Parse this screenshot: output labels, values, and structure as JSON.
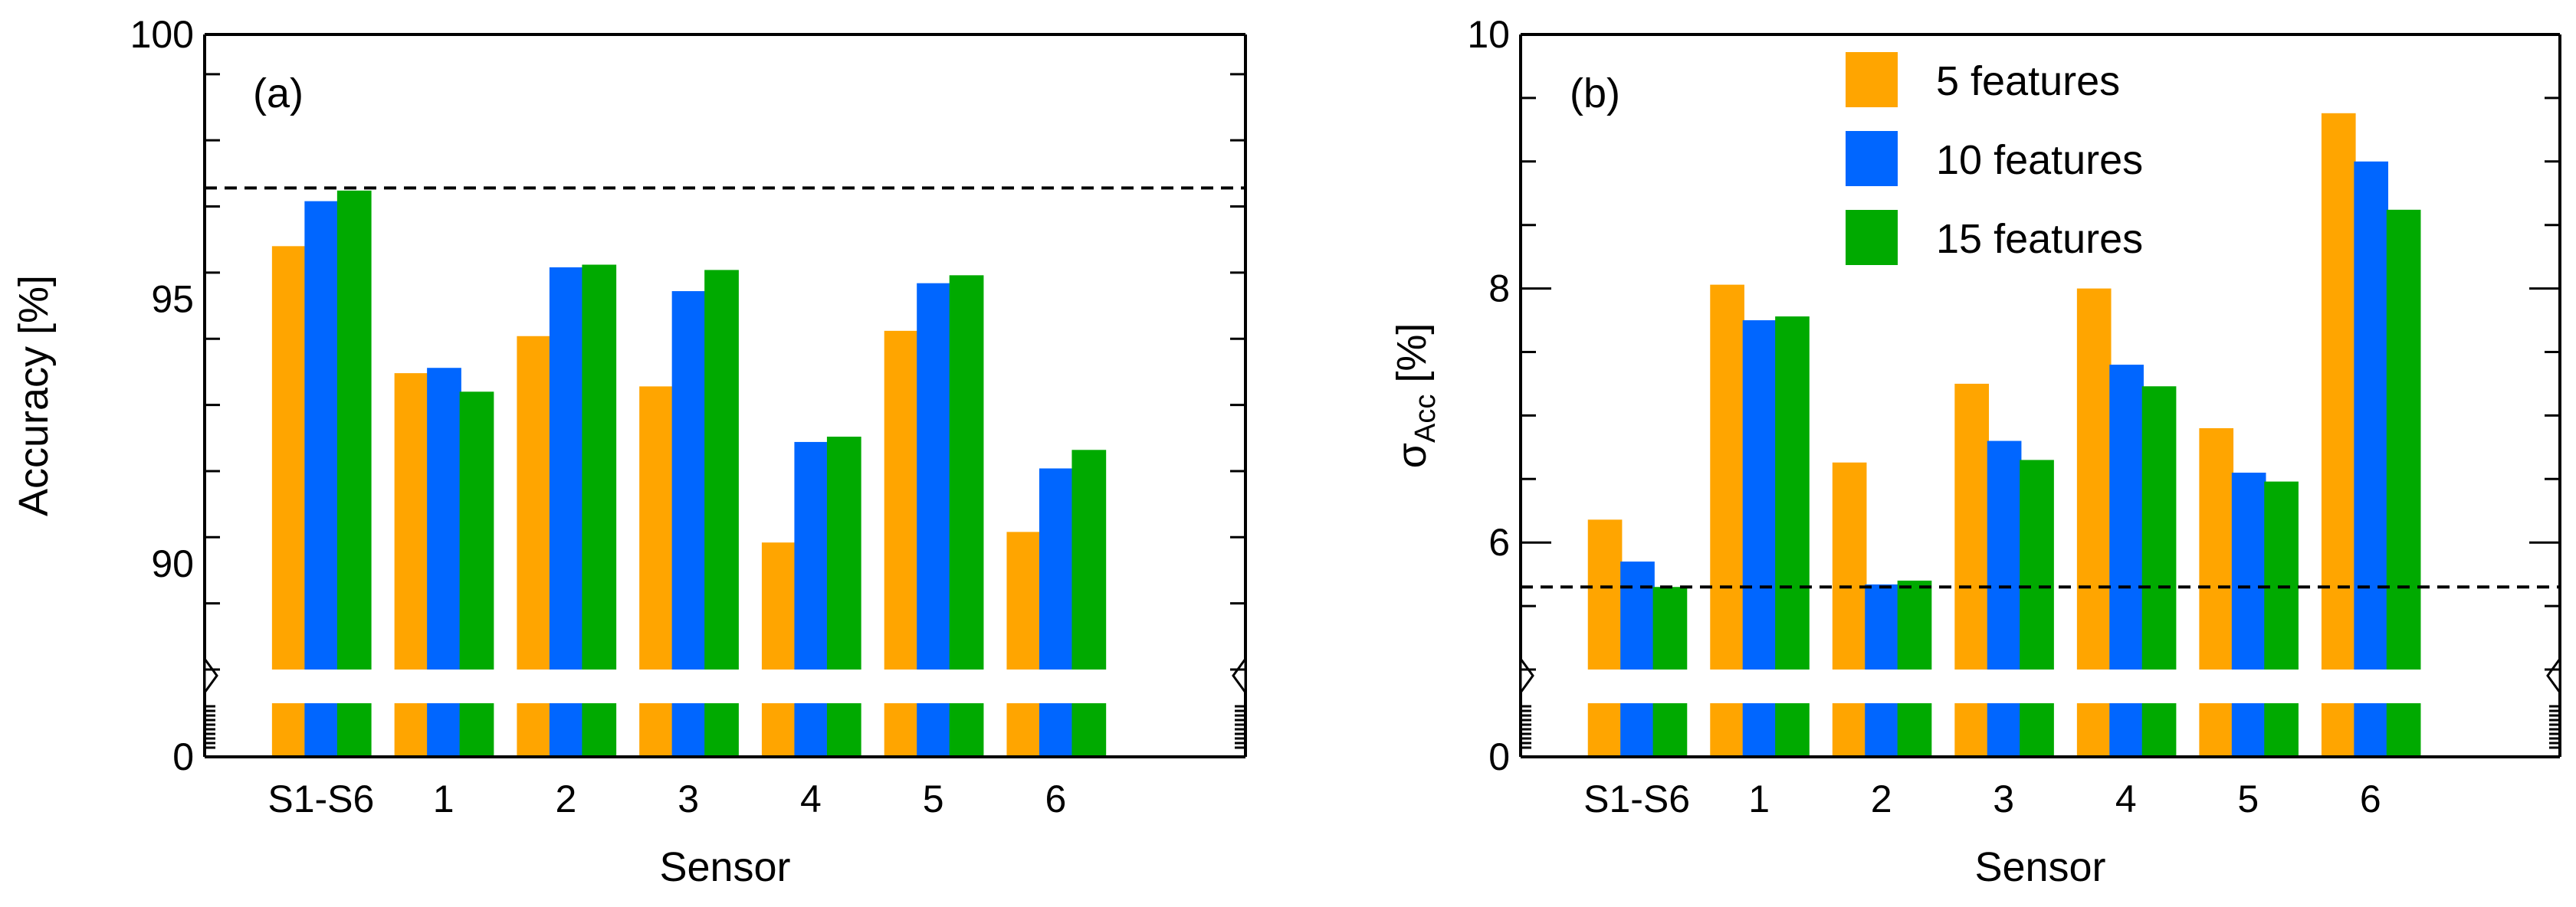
{
  "chart_data": [
    {
      "panel": "(a)",
      "type": "bar",
      "xlabel": "Sensor",
      "ylabel": "Accuracy [%]",
      "categories": [
        "S1-S6",
        "1",
        "2",
        "3",
        "4",
        "5",
        "6"
      ],
      "ylim": [
        88,
        100
      ],
      "axis_break": true,
      "yticks": [
        90,
        95,
        100
      ],
      "ytick_below_break": 0,
      "series": [
        {
          "name": "5 features",
          "color": "#ffa500",
          "values": [
            96.0,
            93.6,
            94.3,
            93.35,
            90.4,
            94.4,
            90.6
          ]
        },
        {
          "name": "10 features",
          "color": "#0066ff",
          "values": [
            96.85,
            93.7,
            95.6,
            95.15,
            92.3,
            95.3,
            91.8
          ]
        },
        {
          "name": "15 features",
          "color": "#00aa00",
          "values": [
            97.05,
            93.25,
            95.65,
            95.55,
            92.4,
            95.45,
            92.15
          ]
        }
      ],
      "reference_line": 97.1
    },
    {
      "panel": "(b)",
      "type": "bar",
      "xlabel": "Sensor",
      "ylabel": "σ",
      "ylabel_sub": "Acc",
      "ylabel_unit": " [%]",
      "categories": [
        "S1-S6",
        "1",
        "2",
        "3",
        "4",
        "5",
        "6"
      ],
      "ylim": [
        5,
        10
      ],
      "axis_break": true,
      "yticks": [
        6,
        8,
        10
      ],
      "ytick_below_break": 0,
      "series": [
        {
          "name": "5 features",
          "color": "#ffa500",
          "values": [
            6.18,
            8.03,
            6.63,
            7.25,
            8.0,
            6.9,
            9.38
          ]
        },
        {
          "name": "10 features",
          "color": "#0066ff",
          "values": [
            5.85,
            7.75,
            5.67,
            6.8,
            7.4,
            6.55,
            9.0
          ]
        },
        {
          "name": "15 features",
          "color": "#00aa00",
          "values": [
            5.65,
            7.78,
            5.7,
            6.65,
            7.23,
            6.48,
            8.62
          ]
        }
      ],
      "below_break_values": {
        "S1-S6": 0.15
      },
      "reference_line": 5.65,
      "legend": [
        "5 features",
        "10 features",
        "15 features"
      ]
    }
  ]
}
